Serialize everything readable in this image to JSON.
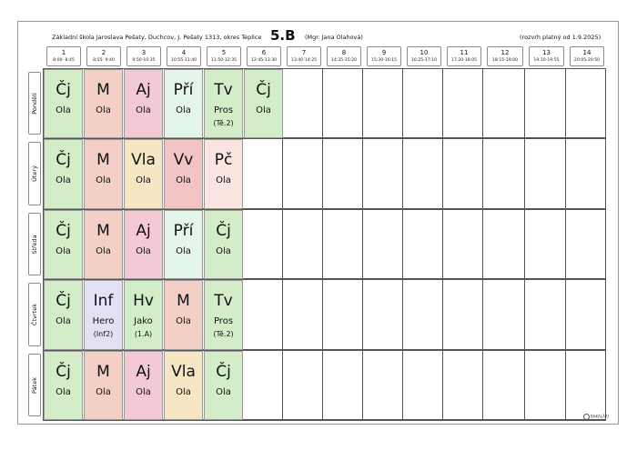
{
  "header": {
    "school": "Základní škola Jaroslava Pešaty, Duchcov, J. Pešaty 1313, okres Teplice",
    "class": "5.B",
    "teacher": "(Mgr. Jana Olahová)",
    "validity": "(rozvrh platný od 1.9.2025)"
  },
  "periods": [
    {
      "num": "1",
      "time": "8:00- 8:45"
    },
    {
      "num": "2",
      "time": "8:55- 9:40"
    },
    {
      "num": "3",
      "time": "9:50-10:35"
    },
    {
      "num": "4",
      "time": "10:55-11:40"
    },
    {
      "num": "5",
      "time": "11:50-12:35"
    },
    {
      "num": "6",
      "time": "12:45-13:30"
    },
    {
      "num": "7",
      "time": "13:40-14:25"
    },
    {
      "num": "8",
      "time": "14:35-15:20"
    },
    {
      "num": "9",
      "time": "15:30-16:15"
    },
    {
      "num": "10",
      "time": "16:25-17:10"
    },
    {
      "num": "11",
      "time": "17:20-18:05"
    },
    {
      "num": "12",
      "time": "18:15-19:00"
    },
    {
      "num": "13",
      "time": "19:10-19:55"
    },
    {
      "num": "14",
      "time": "20:05-20:50"
    }
  ],
  "days": [
    "Pondělí",
    "Úterý",
    "Středa",
    "Čtvrtek",
    "Pátek"
  ],
  "lessons": [
    [
      {
        "subject": "Čj",
        "teacher": "Ola",
        "room": "",
        "color": "#d4edc9"
      },
      {
        "subject": "M",
        "teacher": "Ola",
        "room": "",
        "color": "#f4cfc6"
      },
      {
        "subject": "Aj",
        "teacher": "Ola",
        "room": "",
        "color": "#f3c9d6"
      },
      {
        "subject": "Pří",
        "teacher": "Ola",
        "room": "",
        "color": "#e4f5ea"
      },
      {
        "subject": "Tv",
        "teacher": "Pros",
        "room": "(Tě.2)",
        "color": "#d4edc9"
      },
      {
        "subject": "Čj",
        "teacher": "Ola",
        "room": "",
        "color": "#d4edc9"
      }
    ],
    [
      {
        "subject": "Čj",
        "teacher": "Ola",
        "room": "",
        "color": "#d4edc9"
      },
      {
        "subject": "M",
        "teacher": "Ola",
        "room": "",
        "color": "#f4cfc6"
      },
      {
        "subject": "Vla",
        "teacher": "Ola",
        "room": "",
        "color": "#f7e6c4"
      },
      {
        "subject": "Vv",
        "teacher": "Ola",
        "room": "",
        "color": "#f3c4c4"
      },
      {
        "subject": "Pč",
        "teacher": "Ola",
        "room": "",
        "color": "#fae4e0"
      }
    ],
    [
      {
        "subject": "Čj",
        "teacher": "Ola",
        "room": "",
        "color": "#d4edc9"
      },
      {
        "subject": "M",
        "teacher": "Ola",
        "room": "",
        "color": "#f4cfc6"
      },
      {
        "subject": "Aj",
        "teacher": "Ola",
        "room": "",
        "color": "#f3c9d6"
      },
      {
        "subject": "Pří",
        "teacher": "Ola",
        "room": "",
        "color": "#e4f5ea"
      },
      {
        "subject": "Čj",
        "teacher": "Ola",
        "room": "",
        "color": "#d4edc9"
      }
    ],
    [
      {
        "subject": "Čj",
        "teacher": "Ola",
        "room": "",
        "color": "#d4edc9"
      },
      {
        "subject": "Inf",
        "teacher": "Hero",
        "room": "(Inf2)",
        "color": "#e3e1f6"
      },
      {
        "subject": "Hv",
        "teacher": "Jako",
        "room": "(1.A)",
        "color": "#d4edc9"
      },
      {
        "subject": "M",
        "teacher": "Ola",
        "room": "",
        "color": "#f4cfc6"
      },
      {
        "subject": "Tv",
        "teacher": "Pros",
        "room": "(Tě.2)",
        "color": "#d4edc9"
      }
    ],
    [
      {
        "subject": "Čj",
        "teacher": "Ola",
        "room": "",
        "color": "#d4edc9"
      },
      {
        "subject": "M",
        "teacher": "Ola",
        "room": "",
        "color": "#f4cfc6"
      },
      {
        "subject": "Aj",
        "teacher": "Ola",
        "room": "",
        "color": "#f3c9d6"
      },
      {
        "subject": "Vla",
        "teacher": "Ola",
        "room": "",
        "color": "#f7e6c4"
      },
      {
        "subject": "Čj",
        "teacher": "Ola",
        "room": "",
        "color": "#d4edc9"
      }
    ]
  ],
  "footer": {
    "logo": "BAKALÁŘI"
  }
}
